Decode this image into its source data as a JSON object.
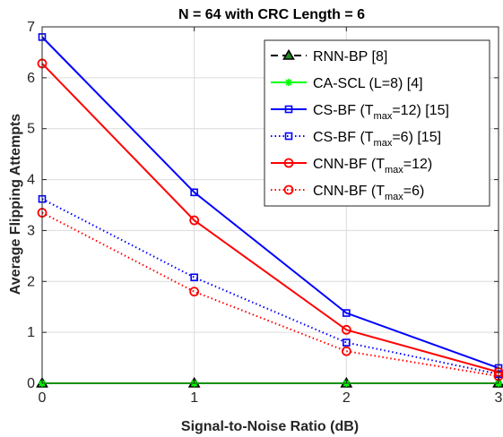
{
  "chart_data": {
    "type": "line",
    "title": "N = 64 with CRC Length = 6",
    "xlabel": "Signal-to-Noise Ratio (dB)",
    "ylabel": "Average Flipping Attempts",
    "x": [
      0,
      1,
      2,
      3
    ],
    "xlim": [
      0,
      3
    ],
    "ylim": [
      0,
      7
    ],
    "xticks": [
      "0",
      "1",
      "2",
      "3"
    ],
    "yticks": [
      "0",
      "1",
      "2",
      "3",
      "4",
      "5",
      "6",
      "7"
    ],
    "grid": true,
    "legend_position": "top-right",
    "series": [
      {
        "name": "RNN-BP [8]",
        "label_parts": [
          "RNN-BP [8]"
        ],
        "values": [
          0,
          0,
          0,
          0
        ],
        "color": "#000000",
        "line": "dashed",
        "marker": "triangle"
      },
      {
        "name": "CA-SCL (L=8) [4]",
        "label_parts": [
          "CA-SCL (L=8) [4]"
        ],
        "values": [
          0,
          0,
          0,
          0
        ],
        "color": "#00ff00",
        "line": "solid",
        "marker": "star"
      },
      {
        "name": "CS-BF (Tmax=12) [15]",
        "label_parts": [
          "CS-BF (T",
          "max",
          "=12) [15]"
        ],
        "values": [
          6.8,
          3.75,
          1.38,
          0.3
        ],
        "color": "#0000ff",
        "line": "solid",
        "marker": "square"
      },
      {
        "name": "CS-BF (Tmax=6) [15]",
        "label_parts": [
          "CS-BF (T",
          "max",
          "=6) [15]"
        ],
        "values": [
          3.62,
          2.08,
          0.8,
          0.18
        ],
        "color": "#0000ff",
        "line": "dotted",
        "marker": "square"
      },
      {
        "name": "CNN-BF (Tmax=12)",
        "label_parts": [
          "CNN-BF (T",
          "max",
          "=12)"
        ],
        "values": [
          6.28,
          3.2,
          1.05,
          0.22
        ],
        "color": "#ff0000",
        "line": "solid",
        "marker": "circle"
      },
      {
        "name": "CNN-BF (Tmax=6)",
        "label_parts": [
          "CNN-BF (T",
          "max",
          "=6)"
        ],
        "values": [
          3.35,
          1.8,
          0.63,
          0.14
        ],
        "color": "#ff0000",
        "line": "dotted",
        "marker": "circle"
      }
    ]
  }
}
